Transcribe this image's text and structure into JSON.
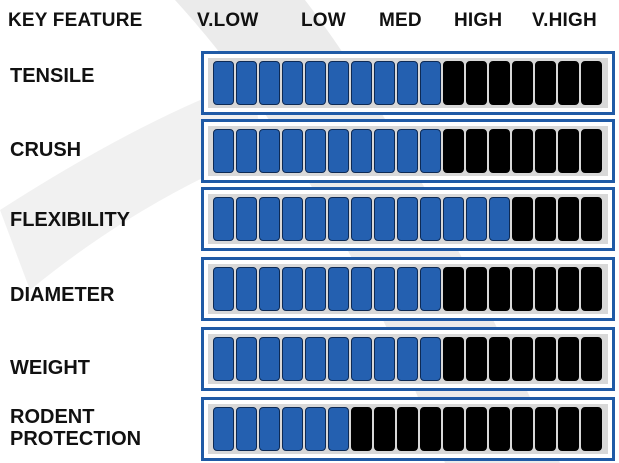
{
  "header": {
    "key_feature": "KEY FEATURE",
    "levels": [
      "V.LOW",
      "LOW",
      "MED",
      "HIGH",
      "V.HIGH"
    ]
  },
  "segments_total": 17,
  "colors": {
    "filled": "#2460b0",
    "empty": "#000000",
    "frame": "#1f5aa6",
    "track": "#d8d8d8"
  },
  "rows": [
    {
      "label": "TENSILE",
      "filled": 10
    },
    {
      "label": "CRUSH",
      "filled": 10
    },
    {
      "label": "FLEXIBILITY",
      "filled": 13
    },
    {
      "label": "DIAMETER",
      "filled": 10
    },
    {
      "label": "WEIGHT",
      "filled": 10
    },
    {
      "label": "RODENT\nPROTECTION",
      "filled": 6
    }
  ]
}
